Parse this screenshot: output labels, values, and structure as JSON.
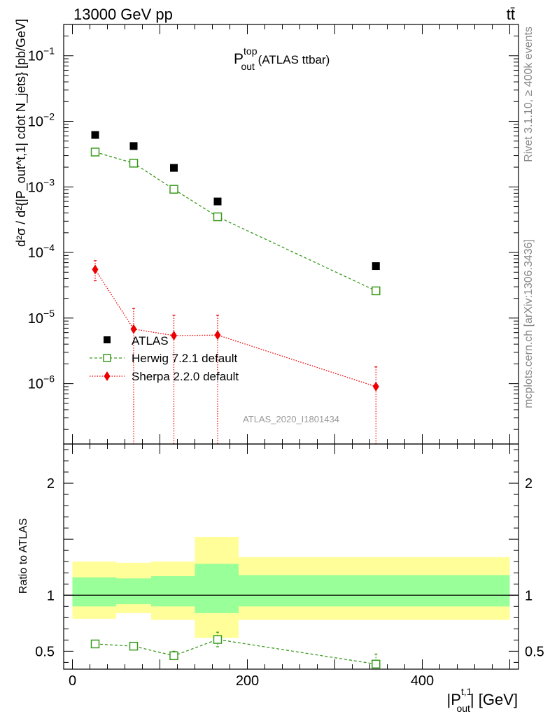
{
  "header": {
    "left_text": "13000 GeV pp",
    "right_text": "tt̄"
  },
  "side_text": {
    "rivet": "Rivet 3.1.10, ≥ 400k events",
    "mcplots": "mcplots.cern.ch [arXiv:1306.3436]"
  },
  "chart_data": [
    {
      "panel": "main",
      "type": "scatter",
      "title_main": "P",
      "title_sup": "top",
      "title_sub": "out",
      "title_suffix": " (ATLAS ttbar)",
      "ylabel": "d²σ / d²{|P_out^t,1| cdot N_jets} [pb/GeV]",
      "yscale": "log",
      "ylim": [
        1.2e-07,
        0.3
      ],
      "xlim": [
        -10,
        510
      ],
      "yticks": [
        {
          "value": 1e-06,
          "base": "10",
          "exp": "−6"
        },
        {
          "value": 1e-05,
          "base": "10",
          "exp": "−5"
        },
        {
          "value": 0.0001,
          "base": "10",
          "exp": "−4"
        },
        {
          "value": 0.001,
          "base": "10",
          "exp": "−3"
        },
        {
          "value": 0.01,
          "base": "10",
          "exp": "−2"
        },
        {
          "value": 0.1,
          "base": "10",
          "exp": "−1"
        }
      ],
      "watermark": "ATLAS_2020_I1801434",
      "series": [
        {
          "name": "ATLAS",
          "marker": "filled-square",
          "color": "#000000",
          "x": [
            26,
            70,
            116,
            166,
            347
          ],
          "y": [
            0.0062,
            0.0042,
            0.00195,
            0.0006,
            6.2e-05
          ]
        },
        {
          "name": "Herwig 7.2.1 default",
          "marker": "open-square",
          "line": "dashed",
          "color": "#3a9a1e",
          "x": [
            26,
            70,
            116,
            166,
            347
          ],
          "y": [
            0.0034,
            0.0023,
            0.00092,
            0.00035,
            2.6e-05
          ]
        },
        {
          "name": "Sherpa 2.2.0 default",
          "marker": "diamond",
          "line": "dotted",
          "color": "#ee0000",
          "x": [
            26,
            70,
            116,
            166,
            347
          ],
          "y": [
            5.5e-05,
            6.8e-06,
            5.4e-06,
            5.5e-06,
            9e-07
          ],
          "yerr_low": [
            3.7e-05,
            1e-09,
            1e-09,
            1e-09,
            1e-09
          ],
          "yerr_high": [
            7.5e-05,
            1.4e-05,
            1.1e-05,
            1.1e-05,
            1.8e-06
          ]
        }
      ],
      "legend_position": "bottom-left"
    },
    {
      "panel": "ratio",
      "type": "line",
      "ylabel": "Ratio to ATLAS",
      "xlabel_main": "|P",
      "xlabel_sup": "t,1",
      "xlabel_sub": "out",
      "xlabel_suffix": "| [GeV]",
      "ylim": [
        0.34,
        2.35
      ],
      "xlim": [
        -10,
        510
      ],
      "yticks": [
        0.5,
        1,
        2
      ],
      "ytick_labels": [
        "0.5",
        "1",
        "2"
      ],
      "xticks": [
        0,
        200,
        400
      ],
      "xtick_labels": [
        "0",
        "200",
        "400"
      ],
      "bands": [
        {
          "x0": 0,
          "x1": 50,
          "yellow": [
            0.79,
            1.3
          ],
          "green": [
            0.9,
            1.16
          ]
        },
        {
          "x0": 50,
          "x1": 90,
          "yellow": [
            0.84,
            1.29
          ],
          "green": [
            0.92,
            1.15
          ]
        },
        {
          "x0": 90,
          "x1": 140,
          "yellow": [
            0.78,
            1.3
          ],
          "green": [
            0.9,
            1.17
          ]
        },
        {
          "x0": 140,
          "x1": 190,
          "yellow": [
            0.62,
            1.52
          ],
          "green": [
            0.84,
            1.28
          ]
        },
        {
          "x0": 190,
          "x1": 500,
          "yellow": [
            0.78,
            1.34
          ],
          "green": [
            0.9,
            1.18
          ]
        }
      ],
      "band_colors": {
        "yellow": "#fffe99",
        "green": "#99ff99"
      },
      "reference": 1,
      "series": [
        {
          "name": "Herwig 7.2.1 default",
          "marker": "open-square",
          "line": "dashed",
          "color": "#3a9a1e",
          "x": [
            26,
            70,
            116,
            166,
            347
          ],
          "y": [
            0.565,
            0.545,
            0.46,
            0.605,
            0.385
          ],
          "yerr_low": [
            0.565,
            0.52,
            0.43,
            0.54,
            0.36
          ],
          "yerr_high": [
            0.565,
            0.57,
            0.5,
            0.67,
            0.475
          ]
        }
      ]
    }
  ]
}
